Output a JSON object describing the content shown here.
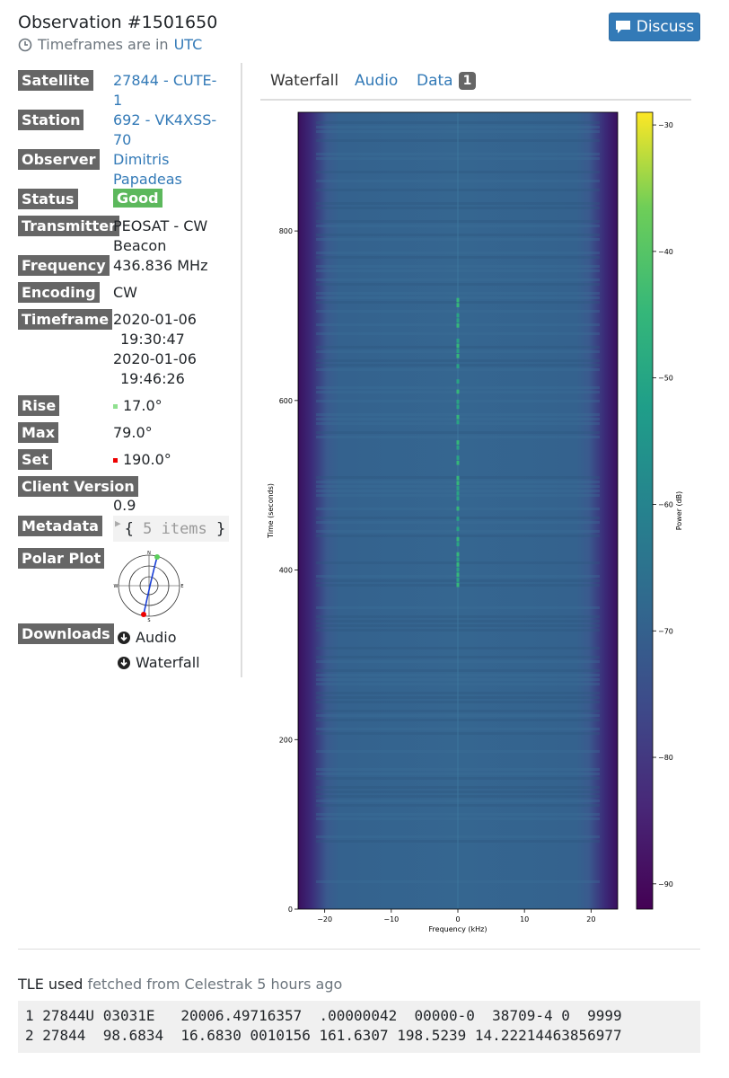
{
  "observation_title": "Observation #1501650",
  "timeframes_text": "Timeframes are in",
  "timeframes_zone": "UTC",
  "discuss_label": "Discuss",
  "info": {
    "satellite_label": "Satellite",
    "satellite_value_1": "27844 - CUTE-",
    "satellite_value_2": "1",
    "station_label": "Station",
    "station_value_1": "692 - VK4XSS-",
    "station_value_2": "70",
    "observer_label": "Observer",
    "observer_value_1": "Dimitris",
    "observer_value_2": "Papadeas",
    "status_label": "Status",
    "status_value": "Good",
    "transmitter_label": "Transmitter",
    "transmitter_value_1": "PEOSAT - CW",
    "transmitter_value_2": "Beacon",
    "frequency_label": "Frequency",
    "frequency_value": "436.836 MHz",
    "encoding_label": "Encoding",
    "encoding_value": "CW",
    "timeframe_label": "Timeframe",
    "timeframe_start_date": "2020-01-06",
    "timeframe_start_time": "19:30:47",
    "timeframe_end_date": "2020-01-06",
    "timeframe_end_time": "19:46:26",
    "rise_label": "Rise",
    "rise_value": "17.0°",
    "max_label": "Max",
    "max_value": "79.0°",
    "set_label": "Set",
    "set_value": "190.0°",
    "client_version_label": "Client Version",
    "client_version_value": "0.9",
    "metadata_label": "Metadata",
    "metadata_open": "{",
    "metadata_count": "5 items",
    "metadata_close": "}",
    "polar_label": "Polar Plot",
    "polar_n": "N",
    "polar_e": "E",
    "polar_s": "S",
    "polar_w": "W",
    "downloads_label": "Downloads",
    "download_audio": "Audio",
    "download_waterfall": "Waterfall"
  },
  "tabs": {
    "waterfall": "Waterfall",
    "audio": "Audio",
    "data": "Data",
    "data_badge": "1"
  },
  "chart_data": {
    "type": "heatmap",
    "xlabel": "Frequency (kHz)",
    "ylabel": "Time (seconds)",
    "colorbar_label": "Power (dB)",
    "xlim": [
      -24,
      24
    ],
    "ylim": [
      0,
      940
    ],
    "x_ticks": [
      -20,
      -10,
      0,
      10,
      20
    ],
    "y_ticks": [
      0,
      200,
      400,
      600,
      800
    ],
    "colorbar_range": [
      -92,
      -29
    ],
    "colorbar_ticks": [
      -30,
      -40,
      -50,
      -60,
      -70,
      -80,
      -90
    ],
    "colormap": "viridis",
    "signal_frequency_khz": 0,
    "signal_time_range": [
      380,
      720
    ],
    "grid": false
  },
  "tle": {
    "label": "TLE used",
    "source": "fetched from Celestrak 5 hours ago",
    "line1": "1 27844U 03031E   20006.49716357  .00000042  00000-0  38709-4 0  9999",
    "line2": "2 27844  98.6834  16.6830 0010156 161.6307 198.5239 14.22214463856977"
  },
  "colors": {
    "link": "#337ab7",
    "label_bg": "#666666",
    "status_good": "#5cb85c",
    "button": "#337ab7"
  }
}
